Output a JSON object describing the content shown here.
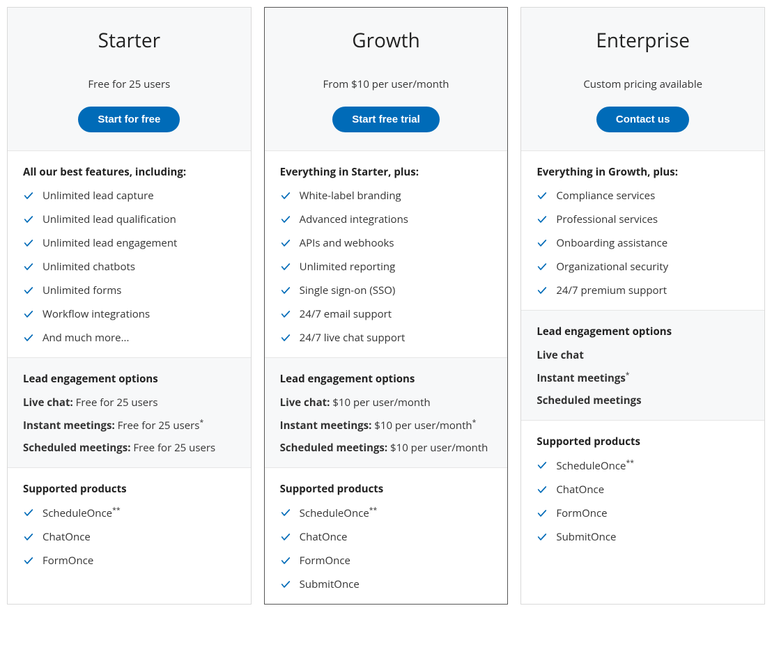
{
  "colors": {
    "button_bg": "#006bb8",
    "button_text": "#ffffff",
    "check_color": "#006bb8",
    "card_border": "#d9d9d9",
    "highlight_border": "#555555",
    "section_bg_alt": "#f7f8f9",
    "text": "#333333"
  },
  "plans": [
    {
      "key": "starter",
      "title": "Starter",
      "price": "Free for 25 users",
      "cta": "Start for free",
      "highlight": false,
      "features_heading": "All our best features, including:",
      "features": [
        "Unlimited lead capture",
        "Unlimited lead qualification",
        "Unlimited lead engagement",
        "Unlimited chatbots",
        "Unlimited forms",
        "Workflow integrations",
        "And much more..."
      ],
      "engagement_heading": "Lead engagement options",
      "engagement": [
        {
          "label": "Live chat:",
          "value": " Free for 25 users",
          "sup": ""
        },
        {
          "label": "Instant meetings:",
          "value": " Free for 25 users",
          "sup": "*"
        },
        {
          "label": "Scheduled meetings:",
          "value": " Free for 25 users",
          "sup": ""
        }
      ],
      "products_heading": "Supported products",
      "products": [
        {
          "name": "ScheduleOnce",
          "sup": "**"
        },
        {
          "name": "ChatOnce",
          "sup": ""
        },
        {
          "name": "FormOnce",
          "sup": ""
        }
      ]
    },
    {
      "key": "growth",
      "title": "Growth",
      "price": "From $10 per user/month",
      "cta": "Start free trial",
      "highlight": true,
      "features_heading": "Everything in Starter, plus:",
      "features": [
        "White-label branding",
        "Advanced integrations",
        "APIs and webhooks",
        "Unlimited reporting",
        "Single sign-on (SSO)",
        "24/7 email support",
        "24/7 live chat support"
      ],
      "engagement_heading": "Lead engagement options",
      "engagement": [
        {
          "label": "Live chat:",
          "value": " $10 per user/month",
          "sup": ""
        },
        {
          "label": "Instant meetings:",
          "value": " $10 per user/month",
          "sup": "*"
        },
        {
          "label": "Scheduled meetings:",
          "value": " $10 per user/month",
          "sup": ""
        }
      ],
      "products_heading": "Supported products",
      "products": [
        {
          "name": "ScheduleOnce",
          "sup": "**"
        },
        {
          "name": "ChatOnce",
          "sup": ""
        },
        {
          "name": "FormOnce",
          "sup": ""
        },
        {
          "name": "SubmitOnce",
          "sup": ""
        }
      ]
    },
    {
      "key": "enterprise",
      "title": "Enterprise",
      "price": "Custom pricing available",
      "cta": "Contact us",
      "highlight": false,
      "features_heading": "Everything in Growth, plus:",
      "features": [
        "Compliance services",
        "Professional services",
        "Onboarding assistance",
        "Organizational security",
        "24/7 premium support"
      ],
      "engagement_heading": "Lead engagement options",
      "engagement": [
        {
          "label": "Live chat",
          "value": "",
          "sup": ""
        },
        {
          "label": "Instant meetings",
          "value": "",
          "sup": "*"
        },
        {
          "label": "Scheduled meetings",
          "value": "",
          "sup": ""
        }
      ],
      "products_heading": "Supported products",
      "products": [
        {
          "name": "ScheduleOnce",
          "sup": "**"
        },
        {
          "name": "ChatOnce",
          "sup": ""
        },
        {
          "name": "FormOnce",
          "sup": ""
        },
        {
          "name": "SubmitOnce",
          "sup": ""
        }
      ]
    }
  ]
}
